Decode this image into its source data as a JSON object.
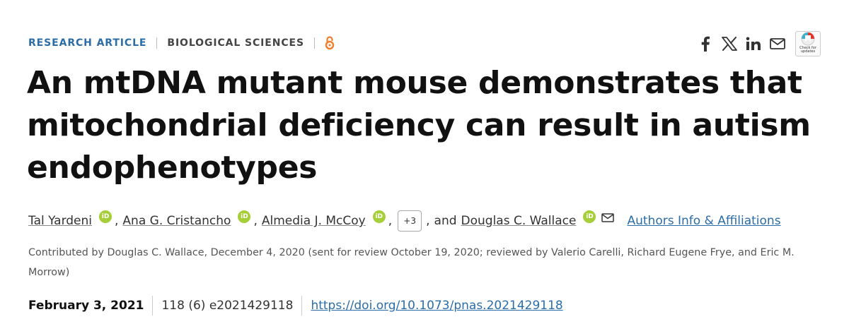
{
  "header": {
    "article_type": "RESEARCH ARTICLE",
    "subject": "BIOLOGICAL SCIENCES",
    "open_access_icon": "open-access-lock-icon",
    "accent_color": "#2b6da8",
    "open_access_color": "#f07d29"
  },
  "share": {
    "icons": [
      "facebook-icon",
      "x-icon",
      "linkedin-icon",
      "email-icon"
    ],
    "crossmark_label": "Check for updates"
  },
  "title": "An mtDNA mutant mouse demonstrates that mitochondrial deficiency can result in autism endophenotypes",
  "authors": {
    "list": [
      {
        "name": "Tal Yardeni",
        "orcid": "iD"
      },
      {
        "name": "Ana G. Cristancho",
        "orcid": "iD"
      },
      {
        "name": "Almedia J. McCoy",
        "orcid": "iD"
      }
    ],
    "more_count": "+3",
    "and_text": "and",
    "last": {
      "name": "Douglas C. Wallace",
      "orcid": "iD"
    },
    "info_link": "Authors Info & Affiliations",
    "orcid_color": "#a6ce39"
  },
  "contributed": "Contributed by Douglas C. Wallace, December 4, 2020 (sent for review October 19, 2020; reviewed by Valerio Carelli, Richard Eugene Frye, and Eric M. Morrow)",
  "publication": {
    "date": "February 3, 2021",
    "volume_issue": "118 (6) e2021429118",
    "doi": "https://doi.org/10.1073/pnas.2021429118"
  }
}
